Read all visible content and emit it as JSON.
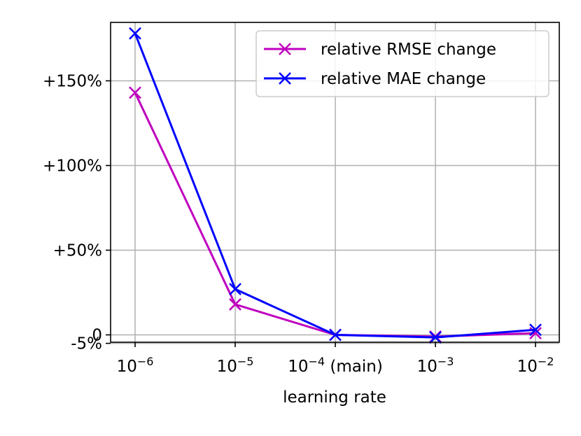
{
  "chart_data": {
    "type": "line",
    "title": "",
    "xlabel": "learning rate",
    "ylabel": "",
    "x": [
      1e-06,
      1e-05,
      0.0001,
      0.001,
      0.01
    ],
    "x_scale": "log",
    "xtick_labels": [
      {
        "base": "10",
        "exp": "−6",
        "suffix": ""
      },
      {
        "base": "10",
        "exp": "−5",
        "suffix": ""
      },
      {
        "base": "10",
        "exp": "−4",
        "suffix": " (main)"
      },
      {
        "base": "10",
        "exp": "−3",
        "suffix": ""
      },
      {
        "base": "10",
        "exp": "−2",
        "suffix": ""
      }
    ],
    "yticks": [
      {
        "value": -5,
        "label": "-5%"
      },
      {
        "value": 0,
        "label": "0"
      },
      {
        "value": 50,
        "label": "+50%"
      },
      {
        "value": 100,
        "label": "+100%"
      },
      {
        "value": 150,
        "label": "+150%"
      }
    ],
    "ylim": [
      -5,
      185
    ],
    "grid": true,
    "legend_position": "top-right",
    "series": [
      {
        "name": "relative RMSE change",
        "color": "#bf00bf",
        "marker": "x",
        "values": [
          143,
          18,
          0,
          -1,
          1
        ]
      },
      {
        "name": "relative MAE change",
        "color": "#0000ff",
        "marker": "x",
        "values": [
          178,
          27,
          0,
          -1.5,
          3
        ]
      }
    ]
  }
}
